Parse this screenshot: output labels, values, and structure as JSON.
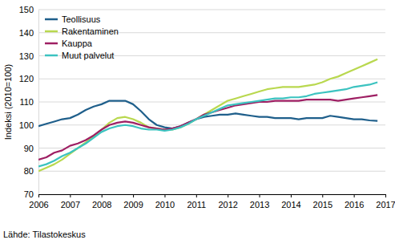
{
  "chart_data": {
    "type": "line",
    "y_label": "Indeksi (2010=100)",
    "source": "Lähde: Tilastokeskus",
    "x": [
      2006,
      2006.25,
      2006.5,
      2006.75,
      2007,
      2007.25,
      2007.5,
      2007.75,
      2008,
      2008.25,
      2008.5,
      2008.75,
      2009,
      2009.25,
      2009.5,
      2009.75,
      2010,
      2010.25,
      2010.5,
      2010.75,
      2011,
      2011.25,
      2011.5,
      2011.75,
      2012,
      2012.25,
      2012.5,
      2012.75,
      2013,
      2013.25,
      2013.5,
      2013.75,
      2014,
      2014.25,
      2014.5,
      2014.75,
      2015,
      2015.25,
      2015.5,
      2015.75,
      2016,
      2016.25,
      2016.5,
      2016.75
    ],
    "series": [
      {
        "name": "Teollisuus",
        "color": "#1f5f8b",
        "values": [
          99.5,
          100.5,
          101.5,
          102.5,
          103,
          104.5,
          106.5,
          108,
          109,
          110.5,
          110.5,
          110.5,
          109,
          106,
          102.5,
          100,
          99,
          98.5,
          99.5,
          101,
          102.5,
          103.5,
          104,
          104.5,
          104.5,
          105,
          104.5,
          104,
          103.5,
          103.5,
          103,
          103,
          103,
          102.5,
          103,
          103,
          103,
          104,
          103.5,
          103,
          102.5,
          102.5,
          102,
          101.8
        ]
      },
      {
        "name": "Rakentaminen",
        "color": "#b9d84f",
        "values": [
          80,
          81.5,
          83,
          85,
          87.5,
          90,
          92.5,
          95,
          98,
          101,
          103,
          103.5,
          102.5,
          101,
          99,
          98.5,
          98,
          98,
          99,
          100.5,
          102.5,
          104.5,
          106.5,
          108.5,
          110.5,
          111.5,
          112.5,
          113.5,
          114.5,
          115.5,
          116,
          116.5,
          116.5,
          116.5,
          117,
          117.5,
          118.5,
          120,
          121,
          122.5,
          124,
          125.5,
          127,
          128.5
        ]
      },
      {
        "name": "Kauppa",
        "color": "#9e1f63",
        "values": [
          85,
          86,
          88,
          89,
          91,
          92,
          93.5,
          95.5,
          98,
          100,
          101,
          101.5,
          101,
          100,
          99,
          98.5,
          98,
          98.5,
          99.5,
          101,
          102.5,
          104.5,
          105.5,
          106.5,
          107.5,
          108.5,
          109,
          109.5,
          110,
          110,
          110.5,
          110.5,
          110.5,
          110.5,
          111,
          111,
          111,
          111,
          110.5,
          111,
          111.5,
          112,
          112.5,
          113
        ]
      },
      {
        "name": "Muut palvelut",
        "color": "#3cc3c0",
        "values": [
          82,
          83,
          84.5,
          86.5,
          88,
          90,
          92,
          94.5,
          97,
          98.5,
          99.5,
          100,
          99.5,
          98.5,
          98,
          98,
          97.5,
          98,
          99,
          100.5,
          102.5,
          104,
          105.5,
          107,
          108.5,
          109,
          109.5,
          110,
          110.5,
          111,
          111.5,
          111.5,
          112,
          112,
          112.5,
          113.5,
          114,
          114.5,
          115,
          115.5,
          116.5,
          117,
          117.5,
          118.5
        ]
      }
    ],
    "xlim": [
      2006,
      2017
    ],
    "xticks": [
      2006,
      2007,
      2008,
      2009,
      2010,
      2011,
      2012,
      2013,
      2014,
      2015,
      2016,
      2017
    ],
    "ylim": [
      70,
      150
    ],
    "yticks": [
      70,
      80,
      90,
      100,
      110,
      120,
      130,
      140,
      150
    ],
    "grid": true,
    "legend": "upper left"
  }
}
